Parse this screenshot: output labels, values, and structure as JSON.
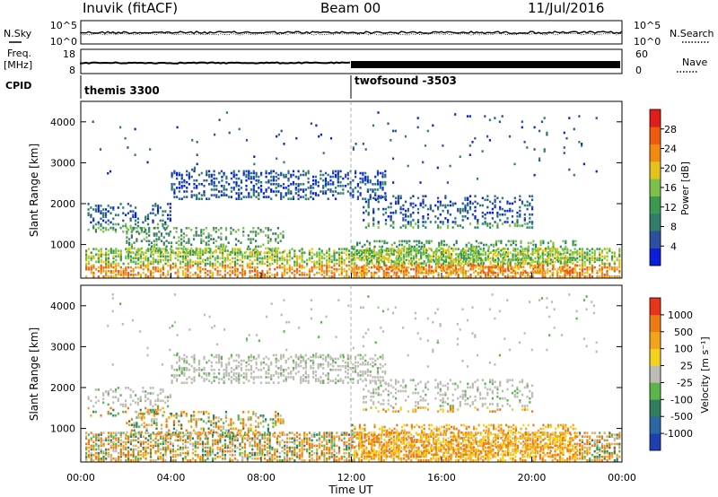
{
  "header": {
    "title": "Inuvik (fitACF)",
    "beam": "Beam 00",
    "date": "11/Jul/2016"
  },
  "chart_data": [
    {
      "type": "line",
      "panel": "sky-search",
      "left_label": "N.Sky",
      "right_label": "N.Search",
      "left_ticks": [
        "10^5",
        "10^0"
      ],
      "right_ticks": [
        "10^5",
        "10^0"
      ]
    },
    {
      "type": "line",
      "panel": "frequency-nave",
      "left_label": "Freq.",
      "left_unit": "[MHz]",
      "right_label": "Nave",
      "left_ticks": [
        "18",
        "8"
      ],
      "right_ticks": [
        "60",
        "0"
      ]
    },
    {
      "type": "table",
      "panel": "cpid",
      "label": "CPID",
      "segments": [
        {
          "start_hour": 0,
          "end_hour": 12,
          "name": "themis 3300"
        },
        {
          "start_hour": 12,
          "end_hour": 24,
          "name": "twofsound -3503"
        }
      ]
    },
    {
      "type": "heatmap",
      "panel": "power",
      "ylabel": "Slant Range [km]",
      "y_ticks": [
        1000,
        2000,
        3000,
        4000
      ],
      "ylim": [
        180,
        4500
      ],
      "colorbar": {
        "label": "Power [dB]",
        "ticks": [
          "28",
          "24",
          "20",
          "16",
          "12",
          "8",
          "4"
        ],
        "range": [
          0,
          30
        ],
        "colors": [
          "#0a1fd8",
          "#2c4fa0",
          "#2f7d6a",
          "#3b9a4f",
          "#7cc24a",
          "#e4c21d",
          "#f28a10",
          "#ee5a0e",
          "#e01d18"
        ]
      }
    },
    {
      "type": "heatmap",
      "panel": "velocity",
      "ylabel": "Slant Range [km]",
      "xlabel": "Time UT",
      "x_ticks": [
        "00:00",
        "04:00",
        "08:00",
        "12:00",
        "16:00",
        "20:00",
        "00:00"
      ],
      "xlim_hours": [
        0,
        24
      ],
      "y_ticks": [
        1000,
        2000,
        3000,
        4000
      ],
      "ylim": [
        180,
        4500
      ],
      "colorbar": {
        "label": "Velocity [m s⁻¹]",
        "ticks": [
          "1000",
          "500",
          "100",
          "25",
          "-25",
          "-100",
          "-500",
          "-1000"
        ],
        "colors": [
          "#1f3fb0",
          "#2b67a4",
          "#2f7f5e",
          "#5ab54a",
          "#bcbcb4",
          "#f4d21a",
          "#f2a51c",
          "#ee7a14",
          "#e8341a"
        ]
      }
    }
  ]
}
